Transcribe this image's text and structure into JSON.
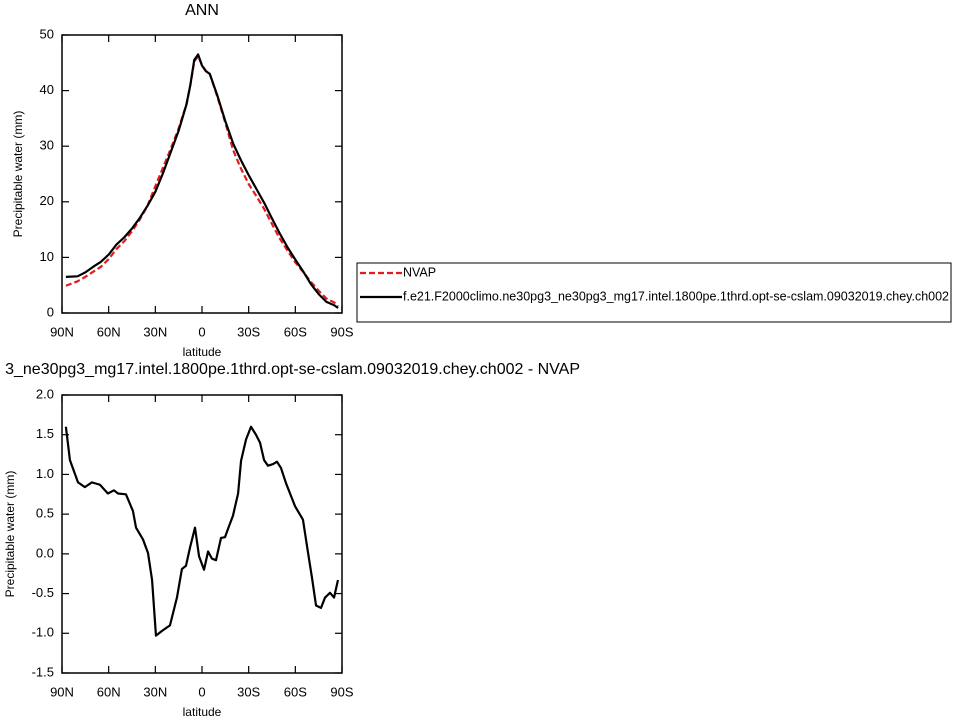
{
  "chart_data": [
    {
      "type": "line",
      "title": "ANN",
      "xlabel": "latitude",
      "ylabel": "Precipitable water (mm)",
      "x": [
        87.5,
        80,
        75,
        70,
        65,
        60,
        55,
        50,
        45,
        40,
        35,
        30,
        25,
        20,
        15,
        10,
        7.5,
        5,
        2.5,
        0,
        -2.5,
        -5,
        -10,
        -15,
        -20,
        -25,
        -30,
        -35,
        -40,
        -45,
        -50,
        -55,
        -60,
        -65,
        -70,
        -75,
        -80,
        -85,
        -87.5
      ],
      "series": [
        {
          "name": "NVAP",
          "color": "#e41a1c",
          "line_style": "dashed",
          "values": [
            4.9,
            5.7,
            6.5,
            7.4,
            8.3,
            9.7,
            11.5,
            12.9,
            14.7,
            16.8,
            19.3,
            22.8,
            26.2,
            29.6,
            33.2,
            37.5,
            41,
            45.2,
            46.2,
            44.6,
            43.5,
            43,
            38.8,
            34.2,
            29.3,
            26,
            23.2,
            21,
            18.7,
            16,
            13.4,
            11.2,
            9.1,
            7.4,
            5.6,
            4.0,
            2.6,
            1.9,
            1.2
          ]
        },
        {
          "name": "f.e21.F2000climo.ne30pg3_ne30pg3_mg17.intel.1800pe.1thrd.opt-se-cslam.09032019.chey.ch002",
          "color": "#000000",
          "line_style": "solid",
          "values": [
            6.5,
            6.6,
            7.3,
            8.3,
            9.2,
            10.5,
            12.3,
            13.6,
            15.2,
            17.1,
            19.3,
            21.8,
            25.2,
            29.0,
            32.8,
            37.5,
            41,
            45.5,
            46.5,
            44.5,
            43.5,
            43,
            39,
            34.5,
            30.5,
            27.5,
            24.8,
            22.3,
            19.8,
            17,
            14.3,
            11.8,
            9.6,
            7.5,
            5.2,
            3.4,
            2.0,
            1.4,
            0.9
          ]
        }
      ],
      "xlim": [
        90,
        -90
      ],
      "xticks": [
        {
          "value": 90,
          "label": "90N"
        },
        {
          "value": 60,
          "label": "60N"
        },
        {
          "value": 30,
          "label": "30N"
        },
        0,
        {
          "value": -30,
          "label": "30S"
        },
        {
          "value": -60,
          "label": "60S"
        },
        {
          "value": -90,
          "label": "90S"
        }
      ],
      "ylim": [
        0,
        50
      ],
      "yticks": [
        0,
        10,
        20,
        30,
        40,
        50
      ],
      "legend": "right"
    },
    {
      "type": "line",
      "title": "3_ne30pg3_mg17.intel.1800pe.1thrd.opt-se-cslam.09032019.chey.ch002 - NVAP",
      "xlabel": "latitude",
      "ylabel": "Precipitable water (mm)",
      "x": [
        87.5,
        84.9,
        79.7,
        75.3,
        70.8,
        65.6,
        60.5,
        56.6,
        54.0,
        48.9,
        44.4,
        42.4,
        37.9,
        34.7,
        32.1,
        29.6,
        25.7,
        20.6,
        16.1,
        12.9,
        10.3,
        7.7,
        4.5,
        1.9,
        -1.3,
        -3.9,
        -6.4,
        -9.0,
        -12.2,
        -14.8,
        -17.4,
        -19.9,
        -23.2,
        -25.1,
        -28.3,
        -31.5,
        -34.7,
        -37.3,
        -39.9,
        -42.4,
        -45.7,
        -48.2,
        -50.8,
        -54.0,
        -57.2,
        -59.8,
        -64.9,
        -68.2,
        -70.7,
        -73.3,
        -76.5,
        -79.1,
        -82.3,
        -84.9,
        -87.4
      ],
      "values": [
        1.6,
        1.18,
        0.9,
        0.84,
        0.9,
        0.87,
        0.76,
        0.8,
        0.76,
        0.75,
        0.54,
        0.33,
        0.18,
        0.01,
        -0.33,
        -1.03,
        -0.97,
        -0.9,
        -0.55,
        -0.19,
        -0.15,
        0.08,
        0.33,
        -0.03,
        -0.2,
        0.03,
        -0.06,
        -0.08,
        0.2,
        0.21,
        0.35,
        0.48,
        0.76,
        1.17,
        1.44,
        1.6,
        1.5,
        1.4,
        1.18,
        1.11,
        1.13,
        1.16,
        1.08,
        0.89,
        0.73,
        0.6,
        0.43,
        0.01,
        -0.3,
        -0.65,
        -0.68,
        -0.55,
        -0.49,
        -0.55,
        -0.33
      ],
      "color": "#000000",
      "xlim": [
        90,
        -90
      ],
      "xticks": [
        {
          "value": 90,
          "label": "90N"
        },
        {
          "value": 60,
          "label": "60N"
        },
        {
          "value": 30,
          "label": "30N"
        },
        0,
        {
          "value": -30,
          "label": "30S"
        },
        {
          "value": -60,
          "label": "60S"
        },
        {
          "value": -90,
          "label": "90S"
        }
      ],
      "ylim": [
        -1.5,
        2.0
      ],
      "yticks": [
        {
          "value": 2.0,
          "label": "2.0"
        },
        1.5,
        {
          "value": 1.0,
          "label": "1.0"
        },
        0.5,
        {
          "value": 0.0,
          "label": "0.0"
        },
        -0.5,
        {
          "value": -1.0,
          "label": "-1.0"
        },
        -1.5
      ]
    }
  ]
}
